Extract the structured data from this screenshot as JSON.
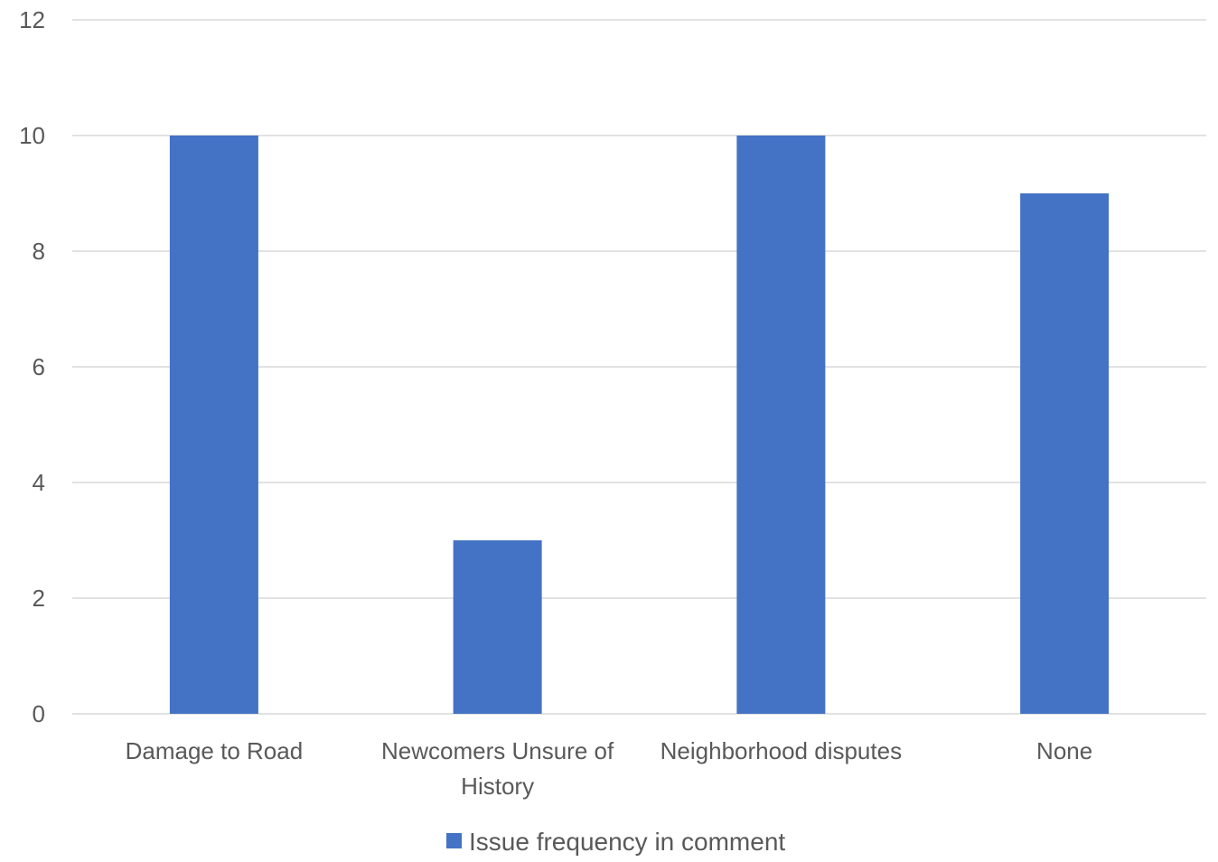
{
  "chart_data": {
    "type": "bar",
    "title": "",
    "xlabel": "",
    "ylabel": "",
    "categories": [
      [
        "Damage to Road"
      ],
      [
        "Newcomers Unsure of",
        "History"
      ],
      [
        "Neighborhood disputes"
      ],
      [
        "None"
      ]
    ],
    "series": [
      {
        "name": "Issue frequency in comment",
        "color": "#4472C4",
        "values": [
          10,
          3,
          10,
          9
        ]
      }
    ],
    "ylim": [
      0,
      12
    ],
    "yticks": [
      0,
      2,
      4,
      6,
      8,
      10,
      12
    ],
    "grid": true,
    "legend_position": "bottom",
    "gridline_color": "#D9D9D9"
  }
}
